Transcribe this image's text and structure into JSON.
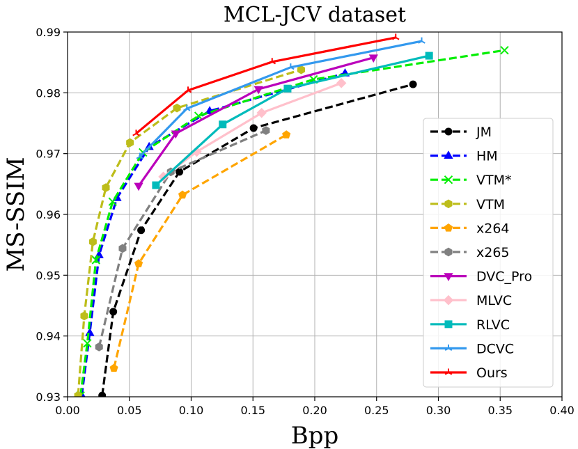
{
  "chart_data": {
    "type": "line",
    "title": "MCL-JCV dataset",
    "xlabel": "Bpp",
    "ylabel": "MS-SSIM",
    "xlim": [
      0.0,
      0.4
    ],
    "ylim": [
      0.93,
      0.99
    ],
    "xticks": [
      "0.00",
      "0.05",
      "0.10",
      "0.15",
      "0.20",
      "0.25",
      "0.30",
      "0.35",
      "0.40"
    ],
    "yticks": [
      "0.93",
      "0.94",
      "0.95",
      "0.96",
      "0.97",
      "0.98",
      "0.99"
    ],
    "xtick_values": [
      0.0,
      0.05,
      0.1,
      0.15,
      0.2,
      0.25,
      0.3,
      0.35,
      0.4
    ],
    "ytick_values": [
      0.93,
      0.94,
      0.95,
      0.96,
      0.97,
      0.98,
      0.99
    ],
    "grid": true,
    "legend_position": "right",
    "series": [
      {
        "name": "JM",
        "color": "#000000",
        "dash": "dashed",
        "marker": "circle",
        "points": [
          [
            0.028,
            0.9302
          ],
          [
            0.037,
            0.944
          ],
          [
            0.0595,
            0.9574
          ],
          [
            0.0905,
            0.967
          ],
          [
            0.1505,
            0.9742
          ],
          [
            0.2795,
            0.9814
          ]
        ]
      },
      {
        "name": "HM",
        "color": "#0000ff",
        "dash": "dashed",
        "marker": "triangle-up",
        "points": [
          [
            0.0115,
            0.9302
          ],
          [
            0.018,
            0.9405
          ],
          [
            0.0255,
            0.9533
          ],
          [
            0.04,
            0.9627
          ],
          [
            0.066,
            0.9711
          ],
          [
            0.115,
            0.977
          ],
          [
            0.2245,
            0.9832
          ]
        ]
      },
      {
        "name": "VTM*",
        "color": "#00ee00",
        "dash": "dashed",
        "marker": "x",
        "points": [
          [
            0.0105,
            0.9302
          ],
          [
            0.016,
            0.9388
          ],
          [
            0.023,
            0.9525
          ],
          [
            0.0365,
            0.9621
          ],
          [
            0.061,
            0.9702
          ],
          [
            0.106,
            0.9762
          ],
          [
            0.199,
            0.9822
          ],
          [
            0.3535,
            0.987
          ]
        ]
      },
      {
        "name": "VTM",
        "color": "#bdbd1a",
        "dash": "dashed",
        "marker": "hexagon",
        "points": [
          [
            0.0085,
            0.9302
          ],
          [
            0.0135,
            0.9433
          ],
          [
            0.0205,
            0.9555
          ],
          [
            0.031,
            0.9644
          ],
          [
            0.0505,
            0.9718
          ],
          [
            0.0885,
            0.9775
          ],
          [
            0.189,
            0.9838
          ]
        ]
      },
      {
        "name": "x264",
        "color": "#ffa500",
        "dash": "dashed",
        "marker": "pentagon",
        "points": [
          [
            0.0375,
            0.9347
          ],
          [
            0.0575,
            0.9519
          ],
          [
            0.093,
            0.9632
          ],
          [
            0.177,
            0.9731
          ]
        ]
      },
      {
        "name": "x265",
        "color": "#808080",
        "dash": "dashed",
        "marker": "hexagon",
        "points": [
          [
            0.0255,
            0.9382
          ],
          [
            0.0445,
            0.9544
          ],
          [
            0.0835,
            0.967
          ],
          [
            0.1605,
            0.9738
          ]
        ]
      },
      {
        "name": "DVC_Pro",
        "color": "#bb00bb",
        "dash": "solid",
        "marker": "triangle-down",
        "points": [
          [
            0.0575,
            0.9647
          ],
          [
            0.0875,
            0.9733
          ],
          [
            0.1545,
            0.9806
          ],
          [
            0.2475,
            0.9858
          ]
        ]
      },
      {
        "name": "MLVC",
        "color": "#ffc0cb",
        "dash": "solid",
        "marker": "diamond",
        "points": [
          [
            0.0775,
            0.9662
          ],
          [
            0.1045,
            0.9703
          ],
          [
            0.157,
            0.9767
          ],
          [
            0.2215,
            0.9816
          ]
        ]
      },
      {
        "name": "RLVC",
        "color": "#00bbbb",
        "dash": "solid",
        "marker": "square",
        "points": [
          [
            0.0715,
            0.9648
          ],
          [
            0.1255,
            0.9748
          ],
          [
            0.178,
            0.9807
          ],
          [
            0.2925,
            0.9861
          ]
        ]
      },
      {
        "name": "DCVC",
        "color": "#3399ee",
        "dash": "solid",
        "marker": "tri",
        "points": [
          [
            0.0585,
            0.9695
          ],
          [
            0.0965,
            0.9774
          ],
          [
            0.1805,
            0.9842
          ],
          [
            0.2865,
            0.9885
          ]
        ]
      },
      {
        "name": "Ours",
        "color": "#ff0000",
        "dash": "solid",
        "marker": "tri",
        "points": [
          [
            0.0555,
            0.9733
          ],
          [
            0.0975,
            0.9804
          ],
          [
            0.1655,
            0.9851
          ],
          [
            0.2655,
            0.9891
          ]
        ]
      }
    ]
  }
}
